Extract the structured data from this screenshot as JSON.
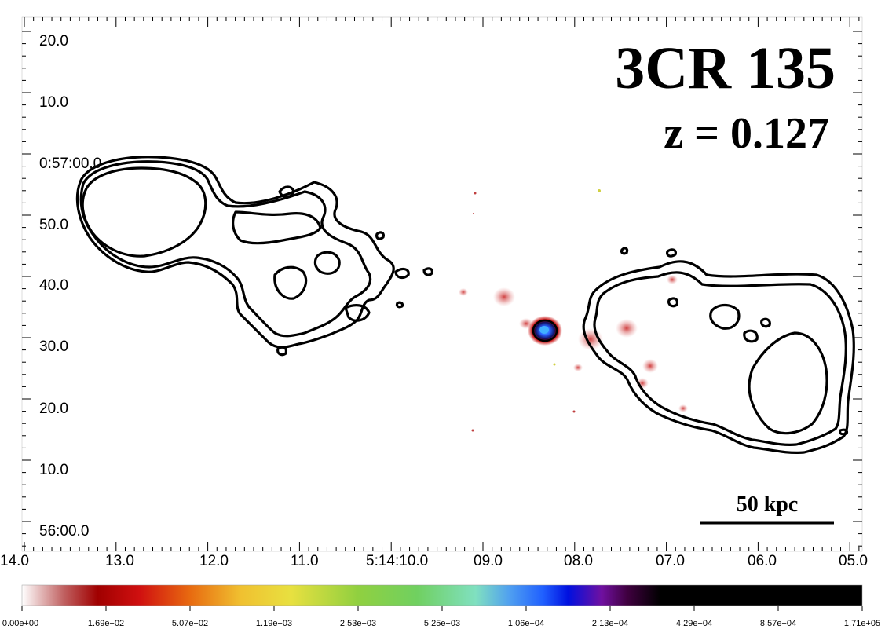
{
  "title": "3CR 135",
  "redshift": "z = 0.127",
  "scale_bar": {
    "label": "50 kpc"
  },
  "dec_ticks": [
    "20.0",
    "10.0",
    "0:57:00.0",
    "50.0",
    "40.0",
    "30.0",
    "20.0",
    "10.0",
    "56:00.0"
  ],
  "ra_ticks": [
    "14.0",
    "13.0",
    "12.0",
    "11.0",
    "5:14:10.0",
    "09.0",
    "08.0",
    "07.0",
    "06.0",
    "05.0"
  ],
  "colorbar": {
    "labels": [
      "0.00e+00",
      "1.69e+02",
      "5.07e+02",
      "1.19e+03",
      "2.53e+03",
      "5.25e+03",
      "1.06e+04",
      "2.13e+04",
      "4.29e+04",
      "8.57e+04",
      "1.71e+05"
    ],
    "colors": [
      "#ffffff",
      "#a00000",
      "#e83010",
      "#f0a020",
      "#f0e040",
      "#70d040",
      "#80e0b0",
      "#4080ff",
      "#0010e0",
      "#7010a0",
      "#000000"
    ]
  },
  "colors": {
    "contour": "#000000",
    "emission_red": "#c81010",
    "core_blue": "#2a60ff"
  }
}
